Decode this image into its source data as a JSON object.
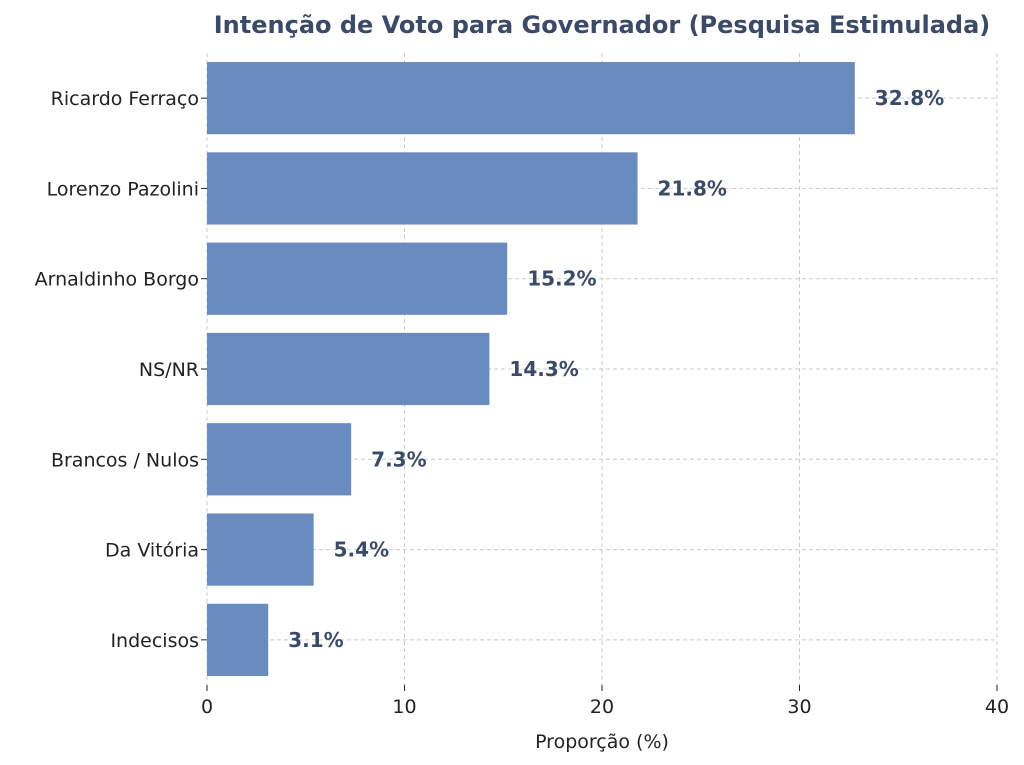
{
  "chart_data": {
    "type": "bar",
    "orientation": "horizontal",
    "title": "Intenção de Voto para Governador (Pesquisa Estimulada)",
    "xlabel": "Proporção (%)",
    "ylabel": "",
    "xlim": [
      0,
      40
    ],
    "x_ticks": [
      "0",
      "10",
      "20",
      "30",
      "40"
    ],
    "grid": true,
    "bar_color": "#6a8bbd",
    "label_color": "#3b4a66",
    "categories": [
      "Ricardo Ferraço",
      "Lorenzo Pazolini",
      "Arnaldinho Borgo",
      "NS/NR",
      "Brancos / Nulos",
      "Da Vitória",
      "Indecisos"
    ],
    "values": [
      32.8,
      21.8,
      15.2,
      14.3,
      7.3,
      5.4,
      3.1
    ],
    "value_labels": [
      "32.8%",
      "21.8%",
      "15.2%",
      "14.3%",
      "7.3%",
      "5.4%",
      "3.1%"
    ]
  }
}
